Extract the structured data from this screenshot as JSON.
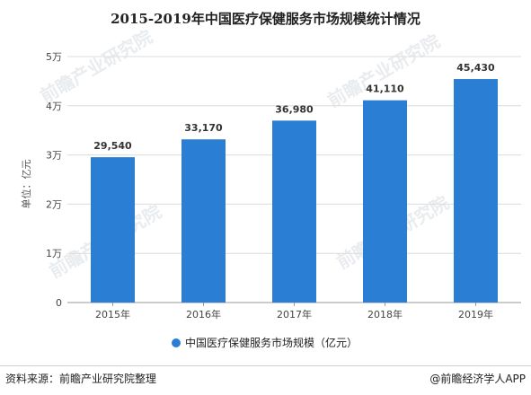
{
  "chart_data": {
    "type": "bar",
    "title": "2015-2019年中国医疗保健服务市场规模统计情况",
    "categories": [
      "2015年",
      "2016年",
      "2017年",
      "2018年",
      "2019年"
    ],
    "values": [
      29540,
      33170,
      36980,
      41110,
      45430
    ],
    "data_labels": [
      "29,540",
      "33,170",
      "36,980",
      "41,110",
      "45,430"
    ],
    "ylabel": "单位：亿元",
    "ylim": [
      0,
      50000
    ],
    "yticks": [
      0,
      10000,
      20000,
      30000,
      40000,
      50000
    ],
    "ytick_labels": [
      "0",
      "1万",
      "2万",
      "3万",
      "4万",
      "5万"
    ],
    "grid": true,
    "legend": {
      "placement": "bottom",
      "entries": [
        "中国医疗保健服务市场规模（亿元）"
      ]
    },
    "bar_color": "#2a7fd4"
  },
  "watermark": "前瞻产业研究院",
  "footer": {
    "source": "资料来源：前瞻产业研究院整理",
    "brand": "@前瞻经济学人APP"
  }
}
